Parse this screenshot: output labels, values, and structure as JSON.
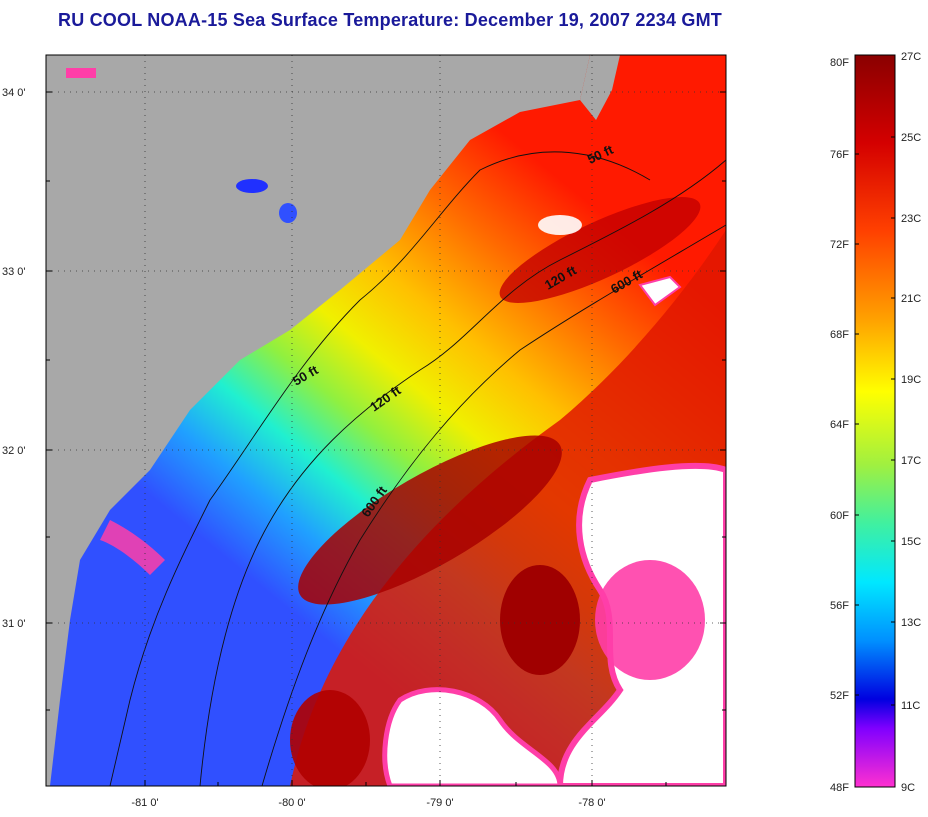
{
  "title": "RU COOL  NOAA-15  Sea Surface Temperature:  December 19, 2007 2234 GMT",
  "map": {
    "lat_labels": [
      "34 0'",
      "33 0'",
      "32 0'",
      "31 0'"
    ],
    "lon_labels": [
      "-81 0'",
      "-80 0'",
      "-79 0'",
      "-78 0'"
    ],
    "depth_contours": [
      {
        "label": "50 ft"
      },
      {
        "label": "50 ft"
      },
      {
        "label": "120 ft"
      },
      {
        "label": "120 ft"
      },
      {
        "label": "600 ft"
      },
      {
        "label": "600 ft"
      }
    ],
    "colors": {
      "land": "#a8a8a8",
      "clouds": "#ffffff",
      "cloud_edge": "#ff3ea8"
    }
  },
  "colorbar": {
    "fahrenheit_labels": [
      "80F",
      "76F",
      "72F",
      "68F",
      "64F",
      "60F",
      "56F",
      "52F",
      "48F"
    ],
    "celsius_labels": [
      "27C",
      "25C",
      "23C",
      "21C",
      "19C",
      "17C",
      "15C",
      "13C",
      "11C",
      "9C"
    ]
  }
}
